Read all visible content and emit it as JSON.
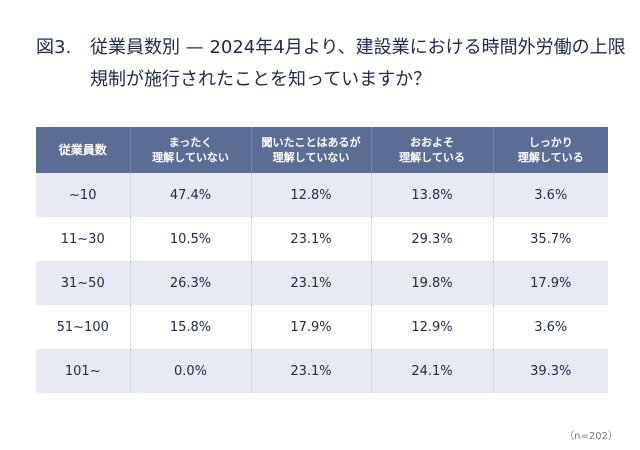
{
  "title": {
    "number": "図3.",
    "text": "従業員数別 — 2024年4月より、建設業における時間外労働の上限規制が施行されたことを知っていますか？"
  },
  "chart_data": {
    "type": "table",
    "columns": [
      "従業員数",
      "まったく 理解していない",
      "聞いたことはあるが 理解していない",
      "おおよそ 理解している",
      "しっかり 理解している"
    ],
    "rows": [
      [
        "~10",
        "47.4%",
        "12.8%",
        "13.8%",
        "3.6%"
      ],
      [
        "11~30",
        "10.5%",
        "23.1%",
        "29.3%",
        "35.7%"
      ],
      [
        "31~50",
        "26.3%",
        "23.1%",
        "19.8%",
        "17.9%"
      ],
      [
        "51~100",
        "15.8%",
        "17.9%",
        "12.9%",
        "3.6%"
      ],
      [
        "101~",
        "0.0%",
        "23.1%",
        "24.1%",
        "39.3%"
      ]
    ]
  },
  "note": "（n=202）",
  "colors": {
    "header": "#5b6d95",
    "stripe": "#e7eaf2",
    "text": "#1f2a4a"
  }
}
